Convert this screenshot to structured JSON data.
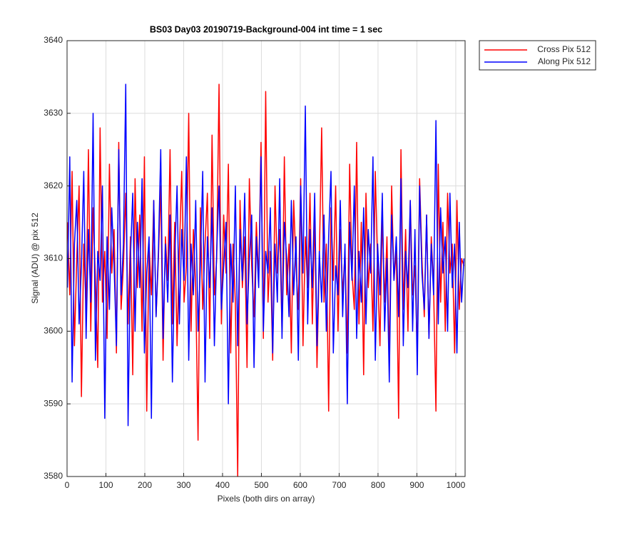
{
  "chart_data": {
    "type": "line",
    "title": "BS03 Day03 20190719-Background-004 int time = 1 sec",
    "xlabel": "Pixels (both dirs on array)",
    "ylabel": "Signal (ADU) @ pix 512",
    "x": [
      1,
      7,
      13,
      19,
      25,
      31,
      37,
      43,
      49,
      55,
      61,
      67,
      73,
      79,
      85,
      91,
      97,
      103,
      109,
      115,
      121,
      127,
      133,
      139,
      145,
      151,
      157,
      163,
      169,
      175,
      181,
      187,
      193,
      199,
      205,
      211,
      217,
      223,
      229,
      235,
      241,
      247,
      253,
      259,
      265,
      271,
      277,
      283,
      289,
      295,
      301,
      307,
      313,
      319,
      325,
      331,
      337,
      343,
      349,
      355,
      361,
      367,
      373,
      379,
      385,
      391,
      397,
      403,
      409,
      415,
      421,
      427,
      433,
      439,
      445,
      451,
      457,
      463,
      469,
      475,
      481,
      487,
      493,
      499,
      505,
      511,
      517,
      523,
      529,
      535,
      541,
      547,
      553,
      559,
      565,
      571,
      577,
      583,
      589,
      595,
      601,
      607,
      613,
      619,
      625,
      631,
      637,
      643,
      649,
      655,
      661,
      667,
      673,
      679,
      685,
      691,
      697,
      703,
      709,
      715,
      721,
      727,
      733,
      739,
      745,
      751,
      757,
      763,
      769,
      775,
      781,
      787,
      793,
      799,
      805,
      811,
      817,
      823,
      829,
      835,
      841,
      847,
      853,
      859,
      865,
      871,
      877,
      883,
      889,
      895,
      901,
      907,
      913,
      919,
      925,
      931,
      937,
      943,
      949,
      955,
      961,
      967,
      973,
      979,
      985,
      991,
      997,
      1003,
      1009,
      1015,
      1021
    ],
    "series": [
      {
        "name": "Cross Pix 512",
        "color": "#ff0000",
        "values": [
          3615,
          3605,
          3622,
          3598,
          3610,
          3620,
          3591,
          3612,
          3603,
          3625,
          3600,
          3617,
          3607,
          3595,
          3628,
          3604,
          3611,
          3599,
          3623,
          3608,
          3614,
          3597,
          3626,
          3603,
          3609,
          3619,
          3601,
          3613,
          3594,
          3621,
          3606,
          3616,
          3600,
          3624,
          3589,
          3612,
          3605,
          3618,
          3602,
          3610,
          3620,
          3596,
          3613,
          3607,
          3625,
          3601,
          3615,
          3598,
          3611,
          3622,
          3604,
          3609,
          3630,
          3600,
          3614,
          3606,
          3585,
          3617,
          3603,
          3612,
          3619,
          3599,
          3627,
          3605,
          3610,
          3634,
          3601,
          3616,
          3608,
          3623,
          3597,
          3612,
          3604,
          3580,
          3618,
          3606,
          3613,
          3595,
          3621,
          3609,
          3602,
          3615,
          3607,
          3626,
          3599,
          3633,
          3604,
          3611,
          3596,
          3620,
          3608,
          3614,
          3600,
          3624,
          3605,
          3612,
          3597,
          3618,
          3609,
          3603,
          3621,
          3598,
          3613,
          3606,
          3619,
          3601,
          3616,
          3595,
          3610,
          3628,
          3604,
          3612,
          3589,
          3617,
          3607,
          3620,
          3600,
          3614,
          3605,
          3611,
          3597,
          3623,
          3608,
          3603,
          3626,
          3601,
          3615,
          3594,
          3619,
          3606,
          3612,
          3600,
          3622,
          3609,
          3598,
          3616,
          3604,
          3613,
          3596,
          3620,
          3607,
          3611,
          3588,
          3625,
          3603,
          3614,
          3600,
          3618,
          3605,
          3609,
          3597,
          3621,
          3610,
          3602,
          3616,
          3599,
          3613,
          3606,
          3589,
          3623,
          3604,
          3615,
          3600,
          3619,
          3608,
          3612,
          3597,
          3618,
          3603,
          3610,
          3609
        ]
      },
      {
        "name": "Along Pix 512",
        "color": "#0000ff",
        "values": [
          3606,
          3624,
          3593,
          3612,
          3618,
          3601,
          3609,
          3622,
          3599,
          3614,
          3604,
          3630,
          3596,
          3611,
          3607,
          3620,
          3588,
          3613,
          3603,
          3617,
          3609,
          3598,
          3625,
          3605,
          3612,
          3634,
          3587,
          3610,
          3619,
          3600,
          3615,
          3606,
          3621,
          3597,
          3608,
          3613,
          3588,
          3618,
          3602,
          3611,
          3625,
          3599,
          3612,
          3604,
          3616,
          3593,
          3610,
          3620,
          3601,
          3614,
          3607,
          3624,
          3596,
          3612,
          3605,
          3618,
          3600,
          3609,
          3622,
          3593,
          3613,
          3606,
          3617,
          3598,
          3611,
          3620,
          3603,
          3609,
          3615,
          3590,
          3612,
          3604,
          3620,
          3598,
          3614,
          3607,
          3619,
          3601,
          3610,
          3616,
          3595,
          3613,
          3606,
          3624,
          3600,
          3611,
          3608,
          3617,
          3597,
          3612,
          3604,
          3621,
          3599,
          3615,
          3610,
          3602,
          3618,
          3605,
          3613,
          3596,
          3620,
          3608,
          3631,
          3601,
          3614,
          3606,
          3619,
          3598,
          3611,
          3604,
          3616,
          3600,
          3613,
          3622,
          3597,
          3609,
          3605,
          3618,
          3602,
          3612,
          3590,
          3615,
          3607,
          3620,
          3599,
          3611,
          3604,
          3617,
          3601,
          3614,
          3608,
          3624,
          3596,
          3612,
          3605,
          3619,
          3600,
          3610,
          3593,
          3616,
          3607,
          3613,
          3602,
          3621,
          3598,
          3611,
          3606,
          3618,
          3600,
          3614,
          3594,
          3620,
          3608,
          3603,
          3616,
          3599,
          3612,
          3605,
          3629,
          3601,
          3617,
          3608,
          3613,
          3600,
          3619,
          3606,
          3612,
          3597,
          3615,
          3604,
          3610
        ]
      }
    ],
    "xlim": [
      0,
      1024
    ],
    "xticks": [
      0,
      100,
      200,
      300,
      400,
      500,
      600,
      700,
      800,
      900,
      1000
    ],
    "ylim": [
      3580,
      3640
    ],
    "yticks": [
      3580,
      3590,
      3600,
      3610,
      3620,
      3630,
      3640
    ],
    "grid": true,
    "legend": "outside-top-right"
  }
}
